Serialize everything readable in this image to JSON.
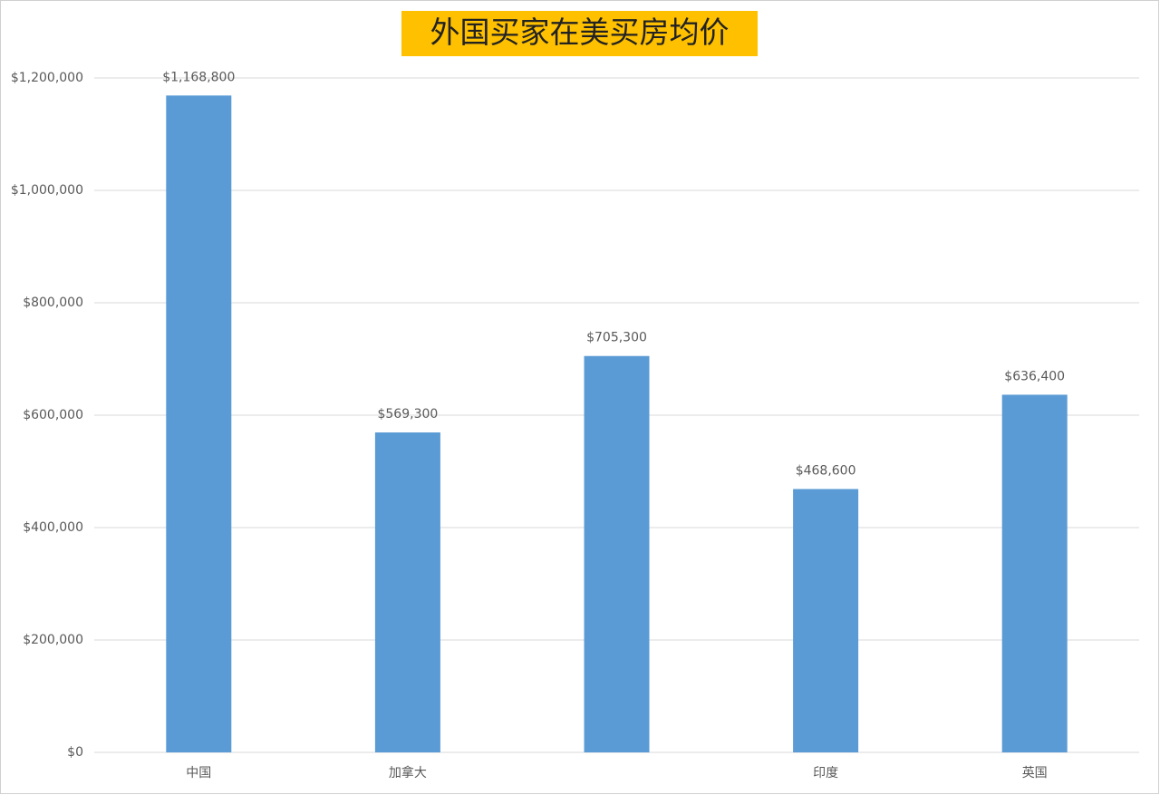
{
  "chart_data": {
    "type": "bar",
    "title": "外国买家在美买房均价",
    "categories": [
      "中国",
      "加拿大",
      null,
      "印度",
      "英国"
    ],
    "values": [
      1168800,
      569300,
      705300,
      468600,
      636400
    ],
    "value_labels": [
      "$1,168,800",
      "$569,300",
      "$705,300",
      "$468,600",
      "$636,400"
    ],
    "color": "#5b9bd5",
    "ylim": [
      0,
      1200000
    ],
    "yticks": [
      {
        "value": 0,
        "label": "$0"
      },
      {
        "value": 200000,
        "label": "$200,000"
      },
      {
        "value": 400000,
        "label": "$400,000"
      },
      {
        "value": 600000,
        "label": "$600,000"
      },
      {
        "value": 800000,
        "label": "$800,000"
      },
      {
        "value": 1000000,
        "label": "$1,000,000"
      },
      {
        "value": 1200000,
        "label": "$1,200,000"
      }
    ],
    "grid": true
  }
}
